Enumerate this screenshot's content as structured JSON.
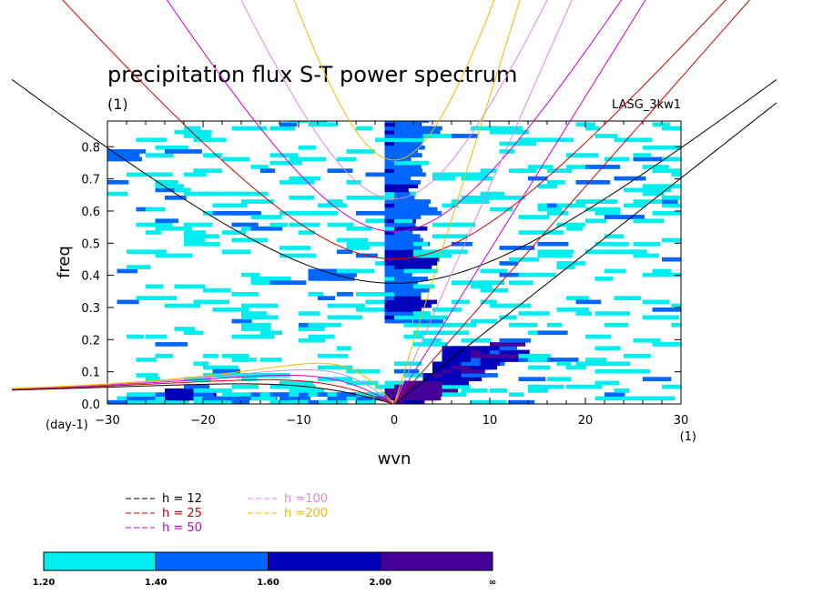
{
  "chart_data": {
    "type": "heatmap",
    "title": "precipitation flux S-T power spectrum",
    "subtitle_left": "(1)",
    "subtitle_right": "LASG_3kw1",
    "xlabel": "wvn",
    "ylabel": "freq",
    "x_unit": "(1)",
    "y_unit": "(day-1)",
    "xlim": [
      -30,
      30
    ],
    "ylim": [
      0.0,
      0.88
    ],
    "xticks": [
      -30,
      -20,
      -10,
      0,
      10,
      20,
      30
    ],
    "xtick_labels": [
      "−30",
      "−20",
      "−10",
      "0",
      "10",
      "20",
      "30"
    ],
    "yticks": [
      0.0,
      0.1,
      0.2,
      0.3,
      0.4,
      0.5,
      0.6,
      0.7,
      0.8
    ],
    "ytick_labels": [
      "0.0",
      "0.1",
      "0.2",
      "0.3",
      "0.4",
      "0.5",
      "0.6",
      "0.7",
      "0.8"
    ],
    "grid": false,
    "dispersion_curves": [
      {
        "label": "h = 12",
        "depth_m": 12,
        "color": "#000000"
      },
      {
        "label": "h = 25",
        "depth_m": 25,
        "color": "#cc0000"
      },
      {
        "label": "h = 50",
        "depth_m": 50,
        "color": "#cc00cc"
      },
      {
        "label": "h =100",
        "depth_m": 100,
        "color": "#dd88dd"
      },
      {
        "label": "h =200",
        "depth_m": 200,
        "color": "#eebb00"
      }
    ],
    "colorbar": {
      "levels": [
        "1.20",
        "1.40",
        "1.60",
        "2.00",
        "∞"
      ],
      "colors": [
        "#00eeee",
        "#0066ff",
        "#0000bb",
        "#440099"
      ]
    },
    "spectral_peaks": [
      {
        "wvn": 0,
        "freq": 0.02,
        "level": 4
      },
      {
        "wvn": 1,
        "freq": 0.03,
        "level": 4
      },
      {
        "wvn": 2,
        "freq": 0.04,
        "level": 4
      },
      {
        "wvn": 3,
        "freq": 0.05,
        "level": 4
      },
      {
        "wvn": 4,
        "freq": 0.07,
        "level": 3
      },
      {
        "wvn": 5,
        "freq": 0.1,
        "level": 3
      },
      {
        "wvn": 6,
        "freq": 0.15,
        "level": 3
      },
      {
        "wvn": 0,
        "freq": 0.3,
        "level": 3
      },
      {
        "wvn": 0,
        "freq": 0.45,
        "level": 3
      },
      {
        "wvn": 0,
        "freq": 0.6,
        "level": 2
      },
      {
        "wvn": 0,
        "freq": 0.84,
        "level": 2
      },
      {
        "wvn": -30,
        "freq": 0.77,
        "level": 2
      },
      {
        "wvn": -8,
        "freq": 0.4,
        "level": 2
      },
      {
        "wvn": -23,
        "freq": 0.02,
        "level": 3
      }
    ]
  }
}
